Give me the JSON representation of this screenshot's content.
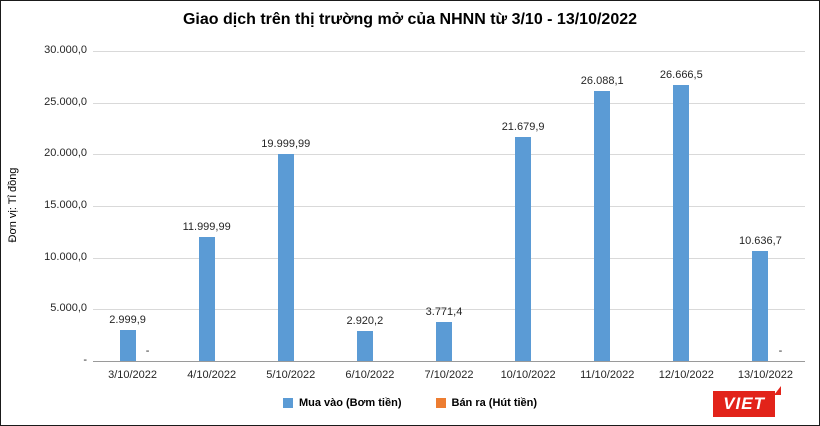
{
  "title": "Giao dịch trên thị trường mở của NHNN từ 3/10 - 13/10/2022",
  "chart_data": {
    "type": "bar",
    "categories": [
      "3/10/2022",
      "4/10/2022",
      "5/10/2022",
      "6/10/2022",
      "7/10/2022",
      "10/10/2022",
      "11/10/2022",
      "12/10/2022",
      "13/10/2022"
    ],
    "series": [
      {
        "name": "Mua vào (Bơm tiền)",
        "color": "#5b9bd5",
        "values": [
          2999.9,
          11999.99,
          19999.99,
          2920.2,
          3771.4,
          21679.9,
          26088.1,
          26666.5,
          10636.7
        ],
        "labels": [
          "2.999,9",
          "11.999,99",
          "19.999,99",
          "2.920,2",
          "3.771,4",
          "21.679,9",
          "26.088,1",
          "26.666,5",
          "10.636,7"
        ]
      },
      {
        "name": "Bán ra (Hút tiền)",
        "color": "#ed7d31",
        "values": [
          0,
          null,
          null,
          null,
          null,
          null,
          null,
          null,
          0
        ],
        "labels": [
          "-",
          "",
          "",
          "",
          "",
          "",
          "",
          "",
          "-"
        ]
      }
    ],
    "title": "Giao dịch trên thị trường mở của NHNN từ 3/10 - 13/10/2022",
    "xlabel": "",
    "ylabel": "Đơn vị: Tỉ đồng",
    "ylim": [
      0,
      30000
    ],
    "ytick_step": 5000,
    "ytick_labels": [
      "-",
      "5.000,0",
      "10.000,0",
      "15.000,0",
      "20.000,0",
      "25.000,0",
      "30.000,0"
    ],
    "grid": true,
    "legend_position": "bottom"
  },
  "legend": {
    "items": [
      {
        "label": "Mua vào (Bơm tiền)",
        "color": "#5b9bd5"
      },
      {
        "label": "Bán ra (Hút tiền)",
        "color": "#ed7d31"
      }
    ]
  },
  "logo": {
    "text": "VIET",
    "color": "#e2231a"
  }
}
